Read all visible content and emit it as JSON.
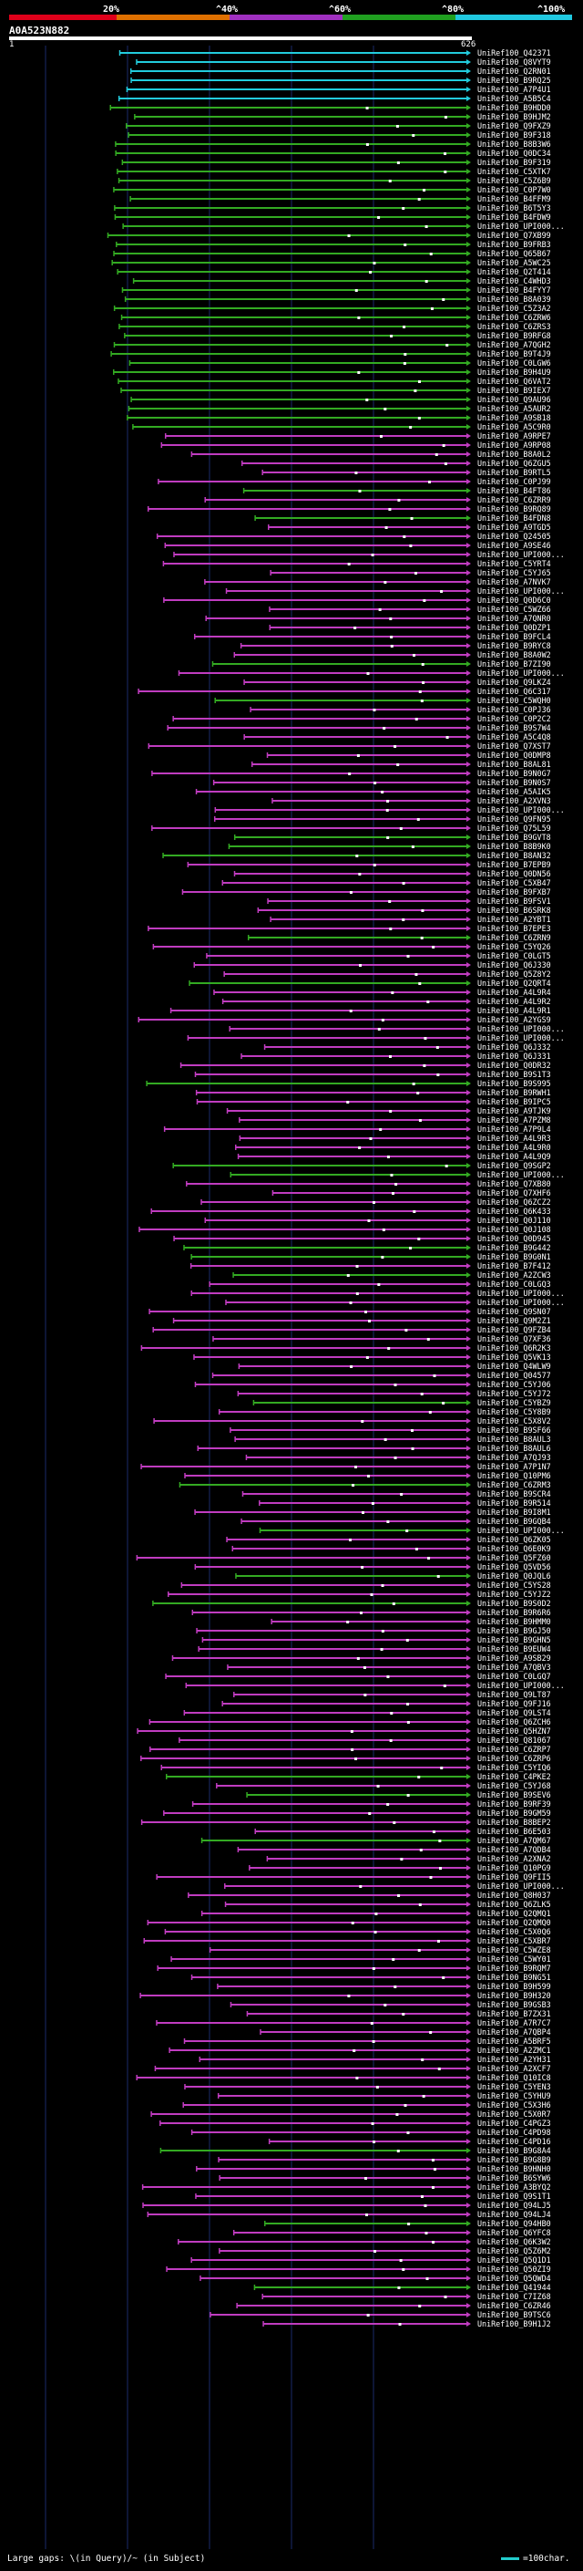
{
  "query": {
    "id": "A0A523N882",
    "length_start": "1",
    "length_end": "626"
  },
  "identity_scale": {
    "labels": [
      "20%",
      "^40%",
      "^60%",
      "^80%",
      "^100%"
    ],
    "colors": [
      "#e0001a",
      "#e07000",
      "#a030c0",
      "#20a020",
      "#20c8e0"
    ]
  },
  "legend": {
    "gaps_text": "Large gaps: \\(in Query)/~ (in Subject)",
    "scale_text": "=100char."
  },
  "colors": {
    "cyan": "#22ccdd",
    "green": "#33aa22",
    "magenta": "#c03cc0",
    "guide": "#1a2a6a"
  },
  "hits": [
    {
      "label": "UniRef100_Q42371",
      "color": "cyan"
    },
    {
      "label": "UniRef100_Q8VYT9",
      "color": "cyan"
    },
    {
      "label": "UniRef100_Q2RN01",
      "color": "cyan"
    },
    {
      "label": "UniRef100_B9RQ25",
      "color": "cyan"
    },
    {
      "label": "UniRef100_A7P4U1",
      "color": "cyan"
    },
    {
      "label": "UniRef100_A5B5C4",
      "color": "cyan"
    },
    {
      "label": "UniRef100_B9HDD0",
      "color": "green"
    },
    {
      "label": "UniRef100_B9HJM2",
      "color": "green"
    },
    {
      "label": "UniRef100_Q9FXZ9",
      "color": "green"
    },
    {
      "label": "UniRef100_B9F318",
      "color": "green"
    },
    {
      "label": "UniRef100_B8B3W6",
      "color": "green"
    },
    {
      "label": "UniRef100_Q0DC34",
      "color": "green"
    },
    {
      "label": "UniRef100_B9F319",
      "color": "green"
    },
    {
      "label": "UniRef100_C5XTK7",
      "color": "green"
    },
    {
      "label": "UniRef100_C5Z6B9",
      "color": "green"
    },
    {
      "label": "UniRef100_C0P7W0",
      "color": "green"
    },
    {
      "label": "UniRef100_B4FFM9",
      "color": "green"
    },
    {
      "label": "UniRef100_B6T5Y3",
      "color": "green"
    },
    {
      "label": "UniRef100_B4FDW9",
      "color": "green"
    },
    {
      "label": "UniRef100_UPI000...",
      "color": "green"
    },
    {
      "label": "UniRef100_Q7XB99",
      "color": "green"
    },
    {
      "label": "UniRef100_B9FRB3",
      "color": "green"
    },
    {
      "label": "UniRef100_Q65B67",
      "color": "green"
    },
    {
      "label": "UniRef100_A5WC25",
      "color": "green"
    },
    {
      "label": "UniRef100_Q2T414",
      "color": "green"
    },
    {
      "label": "UniRef100_C4WHD3",
      "color": "green"
    },
    {
      "label": "UniRef100_B4FYY7",
      "color": "green"
    },
    {
      "label": "UniRef100_B8A039",
      "color": "green"
    },
    {
      "label": "UniRef100_C5Z3A2",
      "color": "green"
    },
    {
      "label": "UniRef100_C6ZRW6",
      "color": "green"
    },
    {
      "label": "UniRef100_C6ZRS3",
      "color": "green"
    },
    {
      "label": "UniRef100_B9RFG8",
      "color": "green"
    },
    {
      "label": "UniRef100_A7QGH2",
      "color": "green"
    },
    {
      "label": "UniRef100_B9T4J9",
      "color": "green"
    },
    {
      "label": "UniRef100_C0LGW6",
      "color": "green"
    },
    {
      "label": "UniRef100_B9H4U9",
      "color": "green"
    },
    {
      "label": "UniRef100_Q6VAT2",
      "color": "green"
    },
    {
      "label": "UniRef100_B9IEX7",
      "color": "green"
    },
    {
      "label": "UniRef100_Q9AU96",
      "color": "green"
    },
    {
      "label": "UniRef100_A5AUR2",
      "color": "green"
    },
    {
      "label": "UniRef100_A9SB18",
      "color": "green"
    },
    {
      "label": "UniRef100_A5C9R0",
      "color": "green"
    },
    {
      "label": "UniRef100_A9RPE7",
      "color": "magenta"
    },
    {
      "label": "UniRef100_A9RP08",
      "color": "magenta"
    },
    {
      "label": "UniRef100_B8A0L2",
      "color": "magenta"
    },
    {
      "label": "UniRef100_Q6ZGU5",
      "color": "magenta"
    },
    {
      "label": "UniRef100_B9RTL5",
      "color": "magenta"
    },
    {
      "label": "UniRef100_C0PJ99",
      "color": "magenta"
    },
    {
      "label": "UniRef100_B4FT86",
      "color": "green"
    },
    {
      "label": "UniRef100_C6ZRR9",
      "color": "magenta"
    },
    {
      "label": "UniRef100_B9RQ89",
      "color": "magenta"
    },
    {
      "label": "UniRef100_B4FDN8",
      "color": "green"
    },
    {
      "label": "UniRef100_A9TGD5",
      "color": "magenta"
    },
    {
      "label": "UniRef100_Q24505",
      "color": "magenta"
    },
    {
      "label": "UniRef100_A9SE46",
      "color": "magenta"
    },
    {
      "label": "UniRef100_UPI000...",
      "color": "magenta"
    },
    {
      "label": "UniRef100_C5YRT4",
      "color": "magenta"
    },
    {
      "label": "UniRef100_C5YJ65",
      "color": "magenta"
    },
    {
      "label": "UniRef100_A7NVK7",
      "color": "magenta"
    },
    {
      "label": "UniRef100_UPI000...",
      "color": "magenta"
    },
    {
      "label": "UniRef100_Q0D6C0",
      "color": "magenta"
    },
    {
      "label": "UniRef100_C5WZ66",
      "color": "magenta"
    },
    {
      "label": "UniRef100_A7QNR0",
      "color": "magenta"
    },
    {
      "label": "UniRef100_Q0DZP1",
      "color": "magenta"
    },
    {
      "label": "UniRef100_B9FCL4",
      "color": "magenta"
    },
    {
      "label": "UniRef100_B9RYC8",
      "color": "magenta"
    },
    {
      "label": "UniRef100_B8A0W2",
      "color": "magenta"
    },
    {
      "label": "UniRef100_B7ZI90",
      "color": "green"
    },
    {
      "label": "UniRef100_UPI000...",
      "color": "magenta"
    },
    {
      "label": "UniRef100_Q9LKZ4",
      "color": "magenta"
    },
    {
      "label": "UniRef100_Q6C317",
      "color": "magenta"
    },
    {
      "label": "UniRef100_C5WQH0",
      "color": "green"
    },
    {
      "label": "UniRef100_C0PJ36",
      "color": "magenta"
    },
    {
      "label": "UniRef100_C0P2C2",
      "color": "magenta"
    },
    {
      "label": "UniRef100_B9S7W4",
      "color": "magenta"
    },
    {
      "label": "UniRef100_A5C4Q8",
      "color": "magenta"
    },
    {
      "label": "UniRef100_Q7XST7",
      "color": "magenta"
    },
    {
      "label": "UniRef100_Q0DMP8",
      "color": "magenta"
    },
    {
      "label": "UniRef100_B8AL81",
      "color": "magenta"
    },
    {
      "label": "UniRef100_B9N0G7",
      "color": "magenta"
    },
    {
      "label": "UniRef100_B9N0S7",
      "color": "magenta"
    },
    {
      "label": "UniRef100_A5AIK5",
      "color": "magenta"
    },
    {
      "label": "UniRef100_A2XVN3",
      "color": "magenta"
    },
    {
      "label": "UniRef100_UPI000...",
      "color": "magenta"
    },
    {
      "label": "UniRef100_Q9FN95",
      "color": "magenta"
    },
    {
      "label": "UniRef100_Q75L59",
      "color": "magenta"
    },
    {
      "label": "UniRef100_B9GVT8",
      "color": "green"
    },
    {
      "label": "UniRef100_B8B9K0",
      "color": "green"
    },
    {
      "label": "UniRef100_B8AN32",
      "color": "green"
    },
    {
      "label": "UniRef100_B7EPB9",
      "color": "magenta"
    },
    {
      "label": "UniRef100_Q0DN56",
      "color": "magenta"
    },
    {
      "label": "UniRef100_C5XB47",
      "color": "magenta"
    },
    {
      "label": "UniRef100_B9FXB7",
      "color": "magenta"
    },
    {
      "label": "UniRef100_B9FSV1",
      "color": "magenta"
    },
    {
      "label": "UniRef100_B6SRK8",
      "color": "magenta"
    },
    {
      "label": "UniRef100_A2YBT1",
      "color": "magenta"
    },
    {
      "label": "UniRef100_B7EPE3",
      "color": "magenta"
    },
    {
      "label": "UniRef100_C6ZRN9",
      "color": "green"
    },
    {
      "label": "UniRef100_C5YQ26",
      "color": "magenta"
    },
    {
      "label": "UniRef100_C0LGT5",
      "color": "magenta"
    },
    {
      "label": "UniRef100_Q6J330",
      "color": "magenta"
    },
    {
      "label": "UniRef100_Q5Z8Y2",
      "color": "magenta"
    },
    {
      "label": "UniRef100_Q2QRT4",
      "color": "green"
    },
    {
      "label": "UniRef100_A4L9R4",
      "color": "magenta"
    },
    {
      "label": "UniRef100_A4L9R2",
      "color": "magenta"
    },
    {
      "label": "UniRef100_A4L9R1",
      "color": "magenta"
    },
    {
      "label": "UniRef100_A2YGS9",
      "color": "magenta"
    },
    {
      "label": "UniRef100_UPI000...",
      "color": "magenta"
    },
    {
      "label": "UniRef100_UPI000...",
      "color": "magenta"
    },
    {
      "label": "UniRef100_Q6J332",
      "color": "magenta"
    },
    {
      "label": "UniRef100_Q6J331",
      "color": "magenta"
    },
    {
      "label": "UniRef100_Q0DR32",
      "color": "magenta"
    },
    {
      "label": "UniRef100_B9S1T3",
      "color": "magenta"
    },
    {
      "label": "UniRef100_B9S995",
      "color": "green"
    },
    {
      "label": "UniRef100_B9RWH1",
      "color": "magenta"
    },
    {
      "label": "UniRef100_B9IPC5",
      "color": "magenta"
    },
    {
      "label": "UniRef100_A9TJK9",
      "color": "magenta"
    },
    {
      "label": "UniRef100_A7PZM8",
      "color": "magenta"
    },
    {
      "label": "UniRef100_A7P9L4",
      "color": "magenta"
    },
    {
      "label": "UniRef100_A4L9R3",
      "color": "magenta"
    },
    {
      "label": "UniRef100_A4L9R0",
      "color": "magenta"
    },
    {
      "label": "UniRef100_A4L9Q9",
      "color": "magenta"
    },
    {
      "label": "UniRef100_Q9SGP2",
      "color": "green"
    },
    {
      "label": "UniRef100_UPI000...",
      "color": "green"
    },
    {
      "label": "UniRef100_Q7XB80",
      "color": "magenta"
    },
    {
      "label": "UniRef100_Q7XHF6",
      "color": "magenta"
    },
    {
      "label": "UniRef100_Q6ZCZ2",
      "color": "magenta"
    },
    {
      "label": "UniRef100_Q6K433",
      "color": "magenta"
    },
    {
      "label": "UniRef100_Q0J110",
      "color": "magenta"
    },
    {
      "label": "UniRef100_Q0J108",
      "color": "magenta"
    },
    {
      "label": "UniRef100_Q0D945",
      "color": "magenta"
    },
    {
      "label": "UniRef100_B9G442",
      "color": "green"
    },
    {
      "label": "UniRef100_B9G0N1",
      "color": "green"
    },
    {
      "label": "UniRef100_B7F412",
      "color": "magenta"
    },
    {
      "label": "UniRef100_A2ZCW3",
      "color": "green"
    },
    {
      "label": "UniRef100_C0LGQ3",
      "color": "magenta"
    },
    {
      "label": "UniRef100_UPI000...",
      "color": "magenta"
    },
    {
      "label": "UniRef100_UPI000...",
      "color": "magenta"
    },
    {
      "label": "UniRef100_Q9SN07",
      "color": "magenta"
    },
    {
      "label": "UniRef100_Q9M2Z1",
      "color": "magenta"
    },
    {
      "label": "UniRef100_Q9FZB4",
      "color": "magenta"
    },
    {
      "label": "UniRef100_Q7XF36",
      "color": "magenta"
    },
    {
      "label": "UniRef100_Q6R2K3",
      "color": "magenta"
    },
    {
      "label": "UniRef100_Q5VK13",
      "color": "magenta"
    },
    {
      "label": "UniRef100_Q4WLW9",
      "color": "magenta"
    },
    {
      "label": "UniRef100_Q04577",
      "color": "magenta"
    },
    {
      "label": "UniRef100_C5YJ06",
      "color": "magenta"
    },
    {
      "label": "UniRef100_C5YJ72",
      "color": "magenta"
    },
    {
      "label": "UniRef100_C5YBZ9",
      "color": "green"
    },
    {
      "label": "UniRef100_C5Y8B9",
      "color": "magenta"
    },
    {
      "label": "UniRef100_C5X8V2",
      "color": "magenta"
    },
    {
      "label": "UniRef100_B9SF66",
      "color": "magenta"
    },
    {
      "label": "UniRef100_B8AUL3",
      "color": "magenta"
    },
    {
      "label": "UniRef100_B8AUL6",
      "color": "magenta"
    },
    {
      "label": "UniRef100_A7QJ93",
      "color": "magenta"
    },
    {
      "label": "UniRef100_A7P1N7",
      "color": "magenta"
    },
    {
      "label": "UniRef100_Q10PM6",
      "color": "magenta"
    },
    {
      "label": "UniRef100_C6ZRM3",
      "color": "green"
    },
    {
      "label": "UniRef100_B9SCR4",
      "color": "magenta"
    },
    {
      "label": "UniRef100_B9R514",
      "color": "magenta"
    },
    {
      "label": "UniRef100_B9I8M1",
      "color": "magenta"
    },
    {
      "label": "UniRef100_B9GQB4",
      "color": "magenta"
    },
    {
      "label": "UniRef100_UPI000...",
      "color": "green"
    },
    {
      "label": "UniRef100_Q6ZK05",
      "color": "magenta"
    },
    {
      "label": "UniRef100_Q6E0K9",
      "color": "magenta"
    },
    {
      "label": "UniRef100_Q5FZ60",
      "color": "magenta"
    },
    {
      "label": "UniRef100_Q5VD56",
      "color": "magenta"
    },
    {
      "label": "UniRef100_Q0JQL6",
      "color": "green"
    },
    {
      "label": "UniRef100_C5YS28",
      "color": "magenta"
    },
    {
      "label": "UniRef100_C5YJZ2",
      "color": "magenta"
    },
    {
      "label": "UniRef100_B9S0D2",
      "color": "green"
    },
    {
      "label": "UniRef100_B9R6R6",
      "color": "magenta"
    },
    {
      "label": "UniRef100_B9HMM0",
      "color": "magenta"
    },
    {
      "label": "UniRef100_B9GJ50",
      "color": "magenta"
    },
    {
      "label": "UniRef100_B9GHN5",
      "color": "magenta"
    },
    {
      "label": "UniRef100_B9EUW4",
      "color": "magenta"
    },
    {
      "label": "UniRef100_A9SB29",
      "color": "magenta"
    },
    {
      "label": "UniRef100_A7QBV3",
      "color": "magenta"
    },
    {
      "label": "UniRef100_C0LGQ7",
      "color": "magenta"
    },
    {
      "label": "UniRef100_UPI000...",
      "color": "magenta"
    },
    {
      "label": "UniRef100_Q9LT87",
      "color": "magenta"
    },
    {
      "label": "UniRef100_Q9FJ16",
      "color": "magenta"
    },
    {
      "label": "UniRef100_Q9LST4",
      "color": "magenta"
    },
    {
      "label": "UniRef100_Q6ZCH6",
      "color": "magenta"
    },
    {
      "label": "UniRef100_Q5HZN7",
      "color": "magenta"
    },
    {
      "label": "UniRef100_Q81067",
      "color": "magenta"
    },
    {
      "label": "UniRef100_C6ZRP7",
      "color": "magenta"
    },
    {
      "label": "UniRef100_C6ZRP6",
      "color": "magenta"
    },
    {
      "label": "UniRef100_C5YIQ6",
      "color": "magenta"
    },
    {
      "label": "UniRef100_C4PKE2",
      "color": "green"
    },
    {
      "label": "UniRef100_C5YJ68",
      "color": "magenta"
    },
    {
      "label": "UniRef100_B9SEV6",
      "color": "green"
    },
    {
      "label": "UniRef100_B9RF39",
      "color": "magenta"
    },
    {
      "label": "UniRef100_B9GM59",
      "color": "magenta"
    },
    {
      "label": "UniRef100_B8BEP2",
      "color": "magenta"
    },
    {
      "label": "UniRef100_B6E503",
      "color": "magenta"
    },
    {
      "label": "UniRef100_A7QM67",
      "color": "green"
    },
    {
      "label": "UniRef100_A7QDB4",
      "color": "magenta"
    },
    {
      "label": "UniRef100_A2XNA2",
      "color": "magenta"
    },
    {
      "label": "UniRef100_Q10PG9",
      "color": "magenta"
    },
    {
      "label": "UniRef100_Q9FII5",
      "color": "magenta"
    },
    {
      "label": "UniRef100_UPI000...",
      "color": "magenta"
    },
    {
      "label": "UniRef100_Q8H037",
      "color": "magenta"
    },
    {
      "label": "UniRef100_Q6ZLK5",
      "color": "magenta"
    },
    {
      "label": "UniRef100_Q2QMQ1",
      "color": "magenta"
    },
    {
      "label": "UniRef100_Q2QMQ0",
      "color": "magenta"
    },
    {
      "label": "UniRef100_C5X0Q6",
      "color": "magenta"
    },
    {
      "label": "UniRef100_C5XBR7",
      "color": "magenta"
    },
    {
      "label": "UniRef100_C5WZE8",
      "color": "magenta"
    },
    {
      "label": "UniRef100_C5WY01",
      "color": "magenta"
    },
    {
      "label": "UniRef100_B9RQM7",
      "color": "magenta"
    },
    {
      "label": "UniRef100_B9NG51",
      "color": "magenta"
    },
    {
      "label": "UniRef100_B9H599",
      "color": "magenta"
    },
    {
      "label": "UniRef100_B9H320",
      "color": "magenta"
    },
    {
      "label": "UniRef100_B9GSB3",
      "color": "magenta"
    },
    {
      "label": "UniRef100_B7ZX31",
      "color": "magenta"
    },
    {
      "label": "UniRef100_A7R7C7",
      "color": "magenta"
    },
    {
      "label": "UniRef100_A7QBP4",
      "color": "magenta"
    },
    {
      "label": "UniRef100_A5BRF5",
      "color": "magenta"
    },
    {
      "label": "UniRef100_A2ZMC1",
      "color": "magenta"
    },
    {
      "label": "UniRef100_A2YH31",
      "color": "magenta"
    },
    {
      "label": "UniRef100_A2XCF7",
      "color": "magenta"
    },
    {
      "label": "UniRef100_Q10IC8",
      "color": "magenta"
    },
    {
      "label": "UniRef100_C5YEN3",
      "color": "magenta"
    },
    {
      "label": "UniRef100_C5YHU9",
      "color": "magenta"
    },
    {
      "label": "UniRef100_C5X3H6",
      "color": "magenta"
    },
    {
      "label": "UniRef100_C5X0R7",
      "color": "magenta"
    },
    {
      "label": "UniRef100_C4PGZ3",
      "color": "magenta"
    },
    {
      "label": "UniRef100_C4PD98",
      "color": "magenta"
    },
    {
      "label": "UniRef100_C4PD16",
      "color": "magenta"
    },
    {
      "label": "UniRef100_B9G8A4",
      "color": "green"
    },
    {
      "label": "UniRef100_B9G8B9",
      "color": "magenta"
    },
    {
      "label": "UniRef100_B9HNH0",
      "color": "magenta"
    },
    {
      "label": "UniRef100_B6SYW6",
      "color": "magenta"
    },
    {
      "label": "UniRef100_A3BYQ2",
      "color": "magenta"
    },
    {
      "label": "UniRef100_Q9S1T1",
      "color": "magenta"
    },
    {
      "label": "UniRef100_Q94LJ5",
      "color": "magenta"
    },
    {
      "label": "UniRef100_Q94LJ4",
      "color": "magenta"
    },
    {
      "label": "UniRef100_Q94HB0",
      "color": "green"
    },
    {
      "label": "UniRef100_Q6YFC8",
      "color": "magenta"
    },
    {
      "label": "UniRef100_Q6K3W2",
      "color": "magenta"
    },
    {
      "label": "UniRef100_Q5Z6M2",
      "color": "magenta"
    },
    {
      "label": "UniRef100_Q5Q1D1",
      "color": "magenta"
    },
    {
      "label": "UniRef100_Q50ZI9",
      "color": "magenta"
    },
    {
      "label": "UniRef100_Q5QWD4",
      "color": "magenta"
    },
    {
      "label": "UniRef100_Q41944",
      "color": "green"
    },
    {
      "label": "UniRef100_C7IZ68",
      "color": "magenta"
    },
    {
      "label": "UniRef100_C6ZR46",
      "color": "magenta"
    },
    {
      "label": "UniRef100_B9TSC6",
      "color": "magenta"
    },
    {
      "label": "UniRef100_B9H1J2",
      "color": "magenta"
    }
  ]
}
